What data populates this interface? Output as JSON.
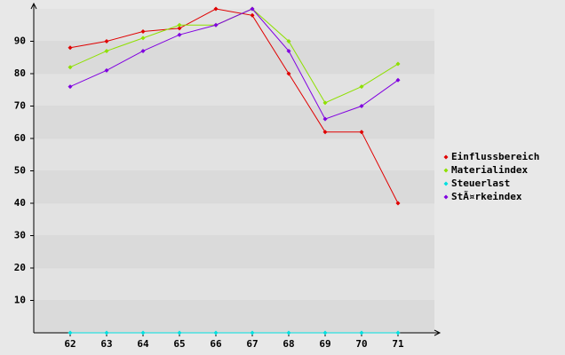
{
  "chart_data": {
    "type": "line",
    "x": [
      62,
      63,
      64,
      65,
      66,
      67,
      68,
      69,
      70,
      71
    ],
    "xlim": [
      61,
      72
    ],
    "xticks": [
      62,
      63,
      64,
      65,
      66,
      67,
      68,
      69,
      70,
      71
    ],
    "ylim": [
      0,
      100
    ],
    "yticks": [
      10,
      20,
      30,
      40,
      50,
      60,
      70,
      80,
      90
    ],
    "grid": true,
    "legend": "right",
    "series": [
      {
        "name": "Einflussbereich",
        "color": "#e00000",
        "values": [
          88,
          90,
          93,
          94,
          100,
          98,
          80,
          62,
          62,
          40
        ]
      },
      {
        "name": "Materialindex",
        "color": "#8ee000",
        "values": [
          82,
          87,
          91,
          95,
          95,
          100,
          90,
          71,
          76,
          83
        ]
      },
      {
        "name": "Steuerlast",
        "color": "#00e0e0",
        "values": [
          0,
          0,
          0,
          0,
          0,
          0,
          0,
          0,
          0,
          0
        ]
      },
      {
        "name": "StÃ¤rkeindex",
        "color": "#8000e0",
        "values": [
          76,
          81,
          87,
          92,
          95,
          100,
          87,
          66,
          70,
          78
        ]
      }
    ]
  }
}
